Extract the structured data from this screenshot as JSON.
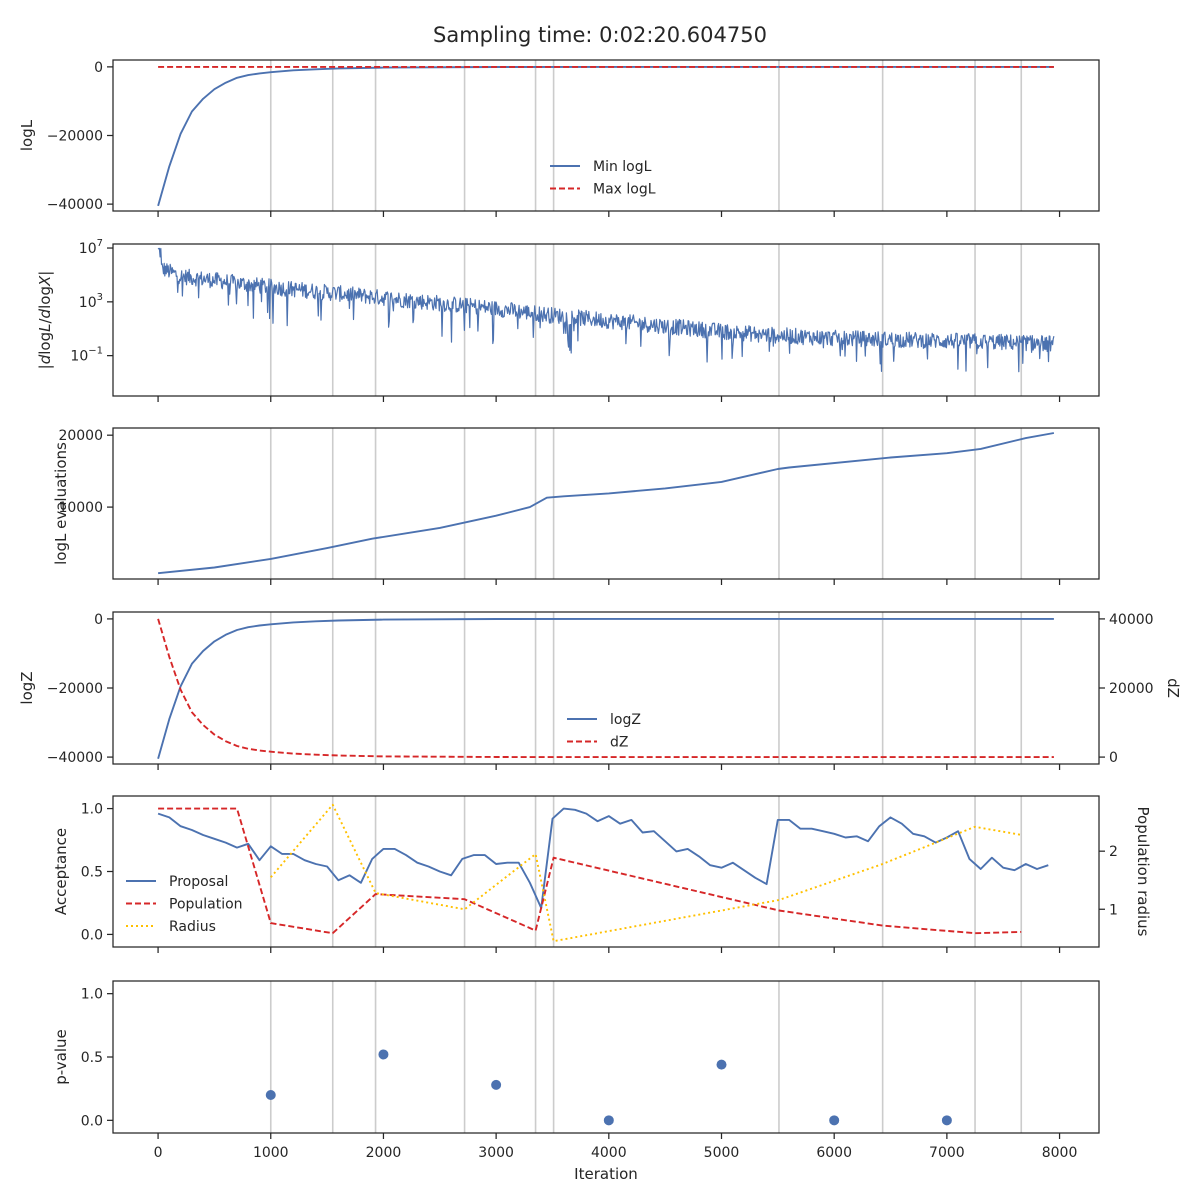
{
  "title": "Sampling time: 0:02:20.604750",
  "colors": {
    "blue": "#4c72b0",
    "red": "#d62728",
    "gold": "#ffc000",
    "grid": "#cccccc",
    "axis": "#262626"
  },
  "shared_x": {
    "label": "Iteration",
    "lim": [
      -400,
      8350
    ],
    "ticks": [
      0,
      1000,
      2000,
      3000,
      4000,
      5000,
      6000,
      7000,
      8000
    ],
    "tick_labels": [
      "0",
      "1000",
      "2000",
      "3000",
      "4000",
      "5000",
      "6000",
      "7000",
      "8000"
    ],
    "vertical_lines": [
      1000,
      1550,
      1930,
      2720,
      3350,
      3510,
      5510,
      6430,
      7250,
      7660
    ]
  },
  "chart_data": [
    {
      "type": "line",
      "ylabel": "logL",
      "ylim": [
        -42000,
        2000
      ],
      "yticks": [
        0,
        -20000,
        -40000
      ],
      "ytick_labels": [
        "0",
        "−20000",
        "−40000"
      ],
      "legend_loc": "lower-center",
      "series": [
        {
          "name": "Min logL",
          "style": "solid",
          "color": "#4c72b0",
          "x": [
            0,
            100,
            200,
            300,
            400,
            500,
            600,
            700,
            800,
            900,
            1000,
            1200,
            1400,
            1600,
            2000,
            3000,
            4000,
            5000,
            6000,
            7000,
            7950
          ],
          "y": [
            -40500,
            -29000,
            -19500,
            -13000,
            -9300,
            -6500,
            -4600,
            -3200,
            -2400,
            -1900,
            -1550,
            -1000,
            -700,
            -450,
            -200,
            -40,
            -10,
            0,
            0,
            0,
            0
          ]
        },
        {
          "name": "Max logL",
          "style": "dashed",
          "color": "#d62728",
          "x": [
            0,
            7950
          ],
          "y": [
            0,
            0
          ]
        }
      ]
    },
    {
      "type": "line",
      "ylabel": "|dlogL/dlogX|",
      "ylabel_math": true,
      "scale": "log",
      "ylim_log10": [
        -4.0,
        7.3
      ],
      "yticks_log10": [
        7,
        3,
        -1
      ],
      "noisy": true,
      "series": [
        {
          "name": "",
          "style": "solid",
          "color": "#4c72b0",
          "x": [
            0,
            200,
            500,
            1000,
            1500,
            2000,
            2500,
            3000,
            3500,
            4000,
            4500,
            5000,
            5500,
            6000,
            6500,
            7000,
            7500,
            7950
          ],
          "y_log10": [
            5.6,
            4.9,
            4.6,
            4.1,
            3.7,
            3.3,
            2.9,
            2.5,
            2.0,
            1.6,
            1.2,
            0.8,
            0.5,
            0.3,
            0.2,
            0.1,
            0.0,
            -0.1
          ]
        }
      ]
    },
    {
      "type": "line",
      "ylabel": "logL evaluations",
      "ylim": [
        0,
        21000
      ],
      "yticks": [
        20000,
        10000
      ],
      "ytick_labels": [
        "20000",
        "10000"
      ],
      "series": [
        {
          "name": "",
          "style": "solid",
          "color": "#4c72b0",
          "x": [
            0,
            500,
            1000,
            1500,
            1900,
            2500,
            3000,
            3300,
            3450,
            3600,
            4000,
            4500,
            5000,
            5500,
            5600,
            6500,
            7000,
            7300,
            7700,
            7950
          ],
          "y": [
            800,
            1600,
            2800,
            4300,
            5600,
            7100,
            8800,
            10000,
            11300,
            11500,
            11900,
            12600,
            13500,
            15300,
            15500,
            16900,
            17500,
            18100,
            19600,
            20300
          ]
        }
      ]
    },
    {
      "type": "line",
      "ylabel": "logZ",
      "ylabel_right": "dZ",
      "ylim": [
        -42000,
        2000
      ],
      "yticks": [
        0,
        -20000,
        -40000
      ],
      "ytick_labels": [
        "0",
        "−20000",
        "−40000"
      ],
      "ylim_right": [
        -2000,
        42000
      ],
      "yticks_right": [
        40000,
        20000,
        0
      ],
      "ytick_labels_right": [
        "40000",
        "20000",
        "0"
      ],
      "legend_loc": "lower-center",
      "series": [
        {
          "name": "logZ",
          "style": "solid",
          "color": "#4c72b0",
          "axis": "left",
          "x": [
            0,
            100,
            200,
            300,
            400,
            500,
            600,
            700,
            800,
            900,
            1000,
            1200,
            1400,
            1600,
            2000,
            3000,
            4000,
            5000,
            6000,
            7000,
            7950
          ],
          "y": [
            -40500,
            -29000,
            -19500,
            -13000,
            -9300,
            -6500,
            -4600,
            -3200,
            -2400,
            -1900,
            -1550,
            -1000,
            -700,
            -450,
            -200,
            -40,
            -10,
            0,
            0,
            0,
            0
          ]
        },
        {
          "name": "dZ",
          "style": "dashed",
          "color": "#d62728",
          "axis": "right",
          "x": [
            0,
            100,
            200,
            300,
            400,
            500,
            600,
            700,
            800,
            900,
            1000,
            1200,
            1400,
            1600,
            2000,
            3000,
            4000,
            5000,
            6000,
            7000,
            7950
          ],
          "y": [
            40000,
            29000,
            19500,
            13000,
            9300,
            6500,
            4600,
            3200,
            2400,
            1900,
            1550,
            1000,
            700,
            450,
            200,
            40,
            10,
            0,
            0,
            0,
            0
          ]
        }
      ]
    },
    {
      "type": "line",
      "ylabel": "Acceptance",
      "ylabel_right": "Population radius",
      "ylim": [
        -0.1,
        1.1
      ],
      "yticks": [
        1.0,
        0.5,
        0.0
      ],
      "ytick_labels": [
        "1.0",
        "0.5",
        "0.0"
      ],
      "ylim_right": [
        0.35,
        2.95
      ],
      "yticks_right": [
        2,
        1
      ],
      "ytick_labels_right": [
        "2",
        "1"
      ],
      "legend_loc": "center-left",
      "series": [
        {
          "name": "Proposal",
          "style": "solid",
          "color": "#4c72b0",
          "axis": "left",
          "x": [
            0,
            100,
            200,
            300,
            400,
            500,
            600,
            700,
            800,
            900,
            1000,
            1100,
            1200,
            1300,
            1400,
            1500,
            1600,
            1700,
            1800,
            1900,
            2000,
            2100,
            2200,
            2300,
            2400,
            2500,
            2600,
            2700,
            2800,
            2900,
            3000,
            3100,
            3200,
            3300,
            3400,
            3500,
            3600,
            3700,
            3800,
            3900,
            4000,
            4100,
            4200,
            4300,
            4400,
            4500,
            4600,
            4700,
            4800,
            4900,
            5000,
            5100,
            5200,
            5300,
            5400,
            5500,
            5600,
            5700,
            5800,
            5900,
            6000,
            6100,
            6200,
            6300,
            6400,
            6500,
            6600,
            6700,
            6800,
            6900,
            7000,
            7100,
            7200,
            7300,
            7400,
            7500,
            7600,
            7700,
            7800,
            7900
          ],
          "y": [
            0.96,
            0.93,
            0.86,
            0.83,
            0.79,
            0.76,
            0.73,
            0.69,
            0.72,
            0.59,
            0.7,
            0.64,
            0.64,
            0.59,
            0.56,
            0.54,
            0.43,
            0.47,
            0.41,
            0.6,
            0.68,
            0.68,
            0.63,
            0.57,
            0.54,
            0.5,
            0.47,
            0.6,
            0.63,
            0.63,
            0.56,
            0.57,
            0.57,
            0.41,
            0.21,
            0.92,
            1.0,
            0.99,
            0.96,
            0.9,
            0.94,
            0.88,
            0.91,
            0.81,
            0.82,
            0.74,
            0.66,
            0.68,
            0.62,
            0.55,
            0.53,
            0.57,
            0.51,
            0.45,
            0.4,
            0.91,
            0.91,
            0.84,
            0.84,
            0.82,
            0.8,
            0.77,
            0.78,
            0.74,
            0.86,
            0.93,
            0.88,
            0.8,
            0.78,
            0.73,
            0.77,
            0.82,
            0.6,
            0.52,
            0.61,
            0.53,
            0.51,
            0.56,
            0.52,
            0.55
          ]
        },
        {
          "name": "Population",
          "style": "dashed",
          "color": "#d62728",
          "axis": "left",
          "x": [
            0,
            700,
            1000,
            1550,
            1930,
            2720,
            3350,
            3510,
            5510,
            6430,
            7250,
            7660
          ],
          "y": [
            1.0,
            1.0,
            0.09,
            0.01,
            0.32,
            0.28,
            0.03,
            0.61,
            0.19,
            0.07,
            0.01,
            0.02
          ]
        },
        {
          "name": "Radius",
          "style": "dotted",
          "color": "#ffc000",
          "axis": "right",
          "x": [
            1000,
            1550,
            1930,
            2720,
            3350,
            3510,
            5510,
            6430,
            7250,
            7660
          ],
          "y": [
            1.55,
            2.8,
            1.28,
            1.0,
            1.95,
            0.45,
            1.16,
            1.78,
            2.42,
            2.28
          ]
        }
      ]
    },
    {
      "type": "scatter",
      "ylabel": "p-value",
      "ylim": [
        -0.1,
        1.1
      ],
      "yticks": [
        1.0,
        0.5,
        0.0
      ],
      "ytick_labels": [
        "1.0",
        "0.5",
        "0.0"
      ],
      "series": [
        {
          "name": "",
          "color": "#4c72b0",
          "x": [
            1000,
            2000,
            3000,
            4000,
            5000,
            6000,
            7000
          ],
          "y": [
            0.2,
            0.52,
            0.28,
            0.0,
            0.44,
            0.0,
            0.0
          ]
        }
      ]
    }
  ]
}
